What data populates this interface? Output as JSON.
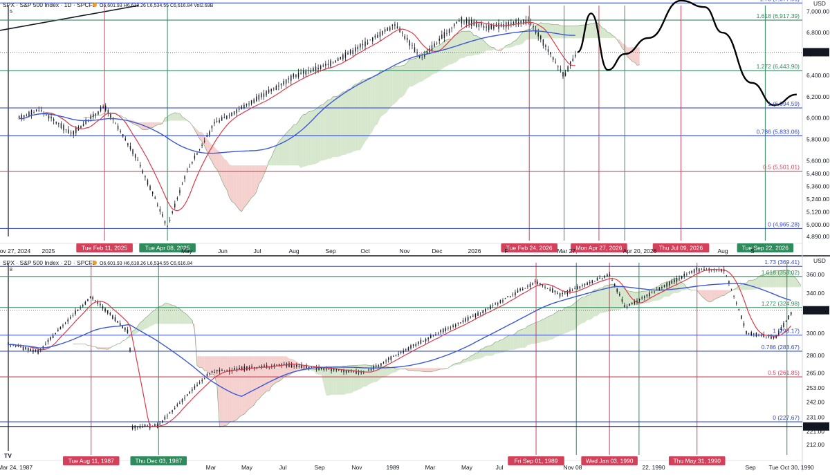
{
  "colors": {
    "fib": "#3348c8",
    "fibGreen": "#2f8a5c",
    "fibRed": "#d2405a",
    "vRed": "#d2405a",
    "vGreen": "#2f8a5c",
    "ma20": "#d63a4a",
    "ma200": "#3b57d6",
    "cloudGreen": "#cfe3c6",
    "cloudRed": "#f2c9c6",
    "candle": "#131722",
    "projection": "#000000"
  },
  "panels": [
    {
      "id": "top",
      "header": {
        "symbol": "SPX · S&P 500 Index · 1D · SPCFD",
        "ohlc": "O6,601.93 H6,618.26 L6,534.55 C6,616.84 Vol2.69B",
        "sub": "5"
      },
      "price_label": "6,616.84",
      "axis_unit": "USD",
      "y_ticks": [
        "7,000.00",
        "6,800.00",
        "6,600.00",
        "6,400.00",
        "6,200.00",
        "6,000.00",
        "5,800.00",
        "5,600.00",
        "5,480.00",
        "5,360.00",
        "5,240.00",
        "5,120.00",
        "5,000.00",
        "4,890.00"
      ],
      "x_ticks": [
        "ov 27, 2024",
        "2025",
        "May",
        "Jun",
        "Jul",
        "Aug",
        "Sep",
        "Oct",
        "Nov",
        "Dec",
        "2026",
        "F",
        "Mar 27,",
        "Apr 20, 2026",
        "Aug",
        "S"
      ],
      "fib_labels": [
        "1.73 (7,077.99)",
        "1.618 (6,917.39)",
        "1.272 (6,443.90)",
        "1 (6,094.59)",
        "0.786 (5,833.06)",
        "0.5 (5,501.01)",
        "0 (4,965.28)"
      ],
      "date_labels": [
        "Tue Feb 11, 2025",
        "Tue Apr 08, 2025",
        "Tue Feb 24, 2026",
        "Mon Apr 27, 2026",
        "Thu Jul 09, 2026",
        "Tue Sep 22, 2026"
      ]
    },
    {
      "id": "bottom",
      "header": {
        "symbol": "SPX · S&P 500 Index · 2D · SPCFD",
        "ohlc": "O6,601.93 H6,618.26 L6,534.55 C6,616.84",
        "sub": "8"
      },
      "price_labels": [
        "322.22",
        "224.38"
      ],
      "axis_unit": "USD",
      "y_ticks": [
        "360.00",
        "340.00",
        "300.00",
        "280.00",
        "265.00",
        "253.00",
        "242.00",
        "231.00",
        "221.00",
        "212.00"
      ],
      "x_ticks": [
        "Mar 24, 1987",
        "Mar",
        "May",
        "Jul",
        "Sep",
        "Nov",
        "1989",
        "Mar",
        "May",
        "Jul",
        "Nov 08",
        "22, 1990",
        "Sep",
        "Tue Oct 30, 1990"
      ],
      "fib_labels": [
        "1.73 (369.41)",
        "1.618 (358.02)",
        "1.272 (324.98)",
        "1 (298.17)",
        "0.786 (283.67)",
        "0.5 (261.85)",
        "0 (227.67)"
      ],
      "date_labels": [
        "Tue Aug 11, 1987",
        "Thu Dec 03, 1987",
        "Fri Sep 01, 1989",
        "Wed Jan 03, 1990",
        "Thu May 31, 1990"
      ]
    }
  ],
  "logo": "TV",
  "chart_data": [
    {
      "type": "candlestick",
      "title": "SPX · S&P 500 Index · 1D · SPCFD",
      "ylabel": "USD",
      "last_close": 6616.84,
      "ylim": [
        4890,
        7080
      ],
      "fibonacci": [
        {
          "level": 1.73,
          "price": 7077.99
        },
        {
          "level": 1.618,
          "price": 6917.39
        },
        {
          "level": 1.272,
          "price": 6443.9
        },
        {
          "level": 1,
          "price": 6094.59
        },
        {
          "level": 0.786,
          "price": 5833.06
        },
        {
          "level": 0.5,
          "price": 5501.01
        },
        {
          "level": 0,
          "price": 4965.28
        }
      ],
      "series": [
        {
          "name": "Price",
          "points": [
            [
              "2024-11-27",
              6000
            ],
            [
              "2024-12-15",
              6080
            ],
            [
              "2025-01-13",
              5850
            ],
            [
              "2025-02-11",
              6110
            ],
            [
              "2025-03-13",
              5600
            ],
            [
              "2025-04-08",
              4980
            ],
            [
              "2025-04-25",
              5500
            ],
            [
              "2025-05-20",
              5950
            ],
            [
              "2025-06-30",
              6200
            ],
            [
              "2025-07-31",
              6400
            ],
            [
              "2025-08-29",
              6500
            ],
            [
              "2025-09-30",
              6690
            ],
            [
              "2025-10-28",
              6880
            ],
            [
              "2025-11-20",
              6560
            ],
            [
              "2025-12-24",
              6920
            ],
            [
              "2026-01-20",
              6850
            ],
            [
              "2026-02-24",
              6910
            ],
            [
              "2026-03-27",
              6400
            ],
            [
              "2026-04-08",
              6616.84
            ]
          ]
        },
        {
          "name": "Projection",
          "points": [
            [
              "2026-04-08",
              6616.84
            ],
            [
              "2026-04-20",
              6980
            ],
            [
              "2026-05-05",
              6450
            ],
            [
              "2026-05-20",
              6600
            ],
            [
              "2026-06-10",
              6750
            ],
            [
              "2026-07-09",
              7100
            ],
            [
              "2026-07-30",
              7040
            ],
            [
              "2026-08-15",
              6800
            ],
            [
              "2026-09-10",
              6330
            ],
            [
              "2026-09-30",
              6120
            ],
            [
              "2026-10-20",
              6220
            ]
          ]
        }
      ]
    },
    {
      "type": "candlestick",
      "title": "SPX · S&P 500 Index · 2D · SPCFD",
      "ylabel": "USD",
      "last_close": 322.22,
      "ylim": [
        208,
        372
      ],
      "fibonacci": [
        {
          "level": 1.73,
          "price": 369.41
        },
        {
          "level": 1.618,
          "price": 358.02
        },
        {
          "level": 1.272,
          "price": 324.98
        },
        {
          "level": 1,
          "price": 298.17
        },
        {
          "level": 0.786,
          "price": 283.67
        },
        {
          "level": 0.5,
          "price": 261.85
        },
        {
          "level": 0,
          "price": 227.67
        }
      ],
      "series": [
        {
          "name": "Price",
          "points": [
            [
              "1987-03-24",
              290
            ],
            [
              "1987-05-15",
              283
            ],
            [
              "1987-08-11",
              336
            ],
            [
              "1987-10-15",
              300
            ],
            [
              "1987-10-19",
              224
            ],
            [
              "1987-12-03",
              225
            ],
            [
              "1988-03-01",
              266
            ],
            [
              "1988-07-01",
              272
            ],
            [
              "1988-11-15",
              265
            ],
            [
              "1989-03-01",
              295
            ],
            [
              "1989-06-01",
              320
            ],
            [
              "1989-09-01",
              352
            ],
            [
              "1989-10-13",
              338
            ],
            [
              "1990-01-03",
              360
            ],
            [
              "1990-01-30",
              325
            ],
            [
              "1990-05-31",
              366
            ],
            [
              "1990-07-16",
              365
            ],
            [
              "1990-08-23",
              300
            ],
            [
              "1990-10-11",
              296
            ],
            [
              "1990-11-10",
              322.22
            ]
          ]
        }
      ]
    }
  ]
}
